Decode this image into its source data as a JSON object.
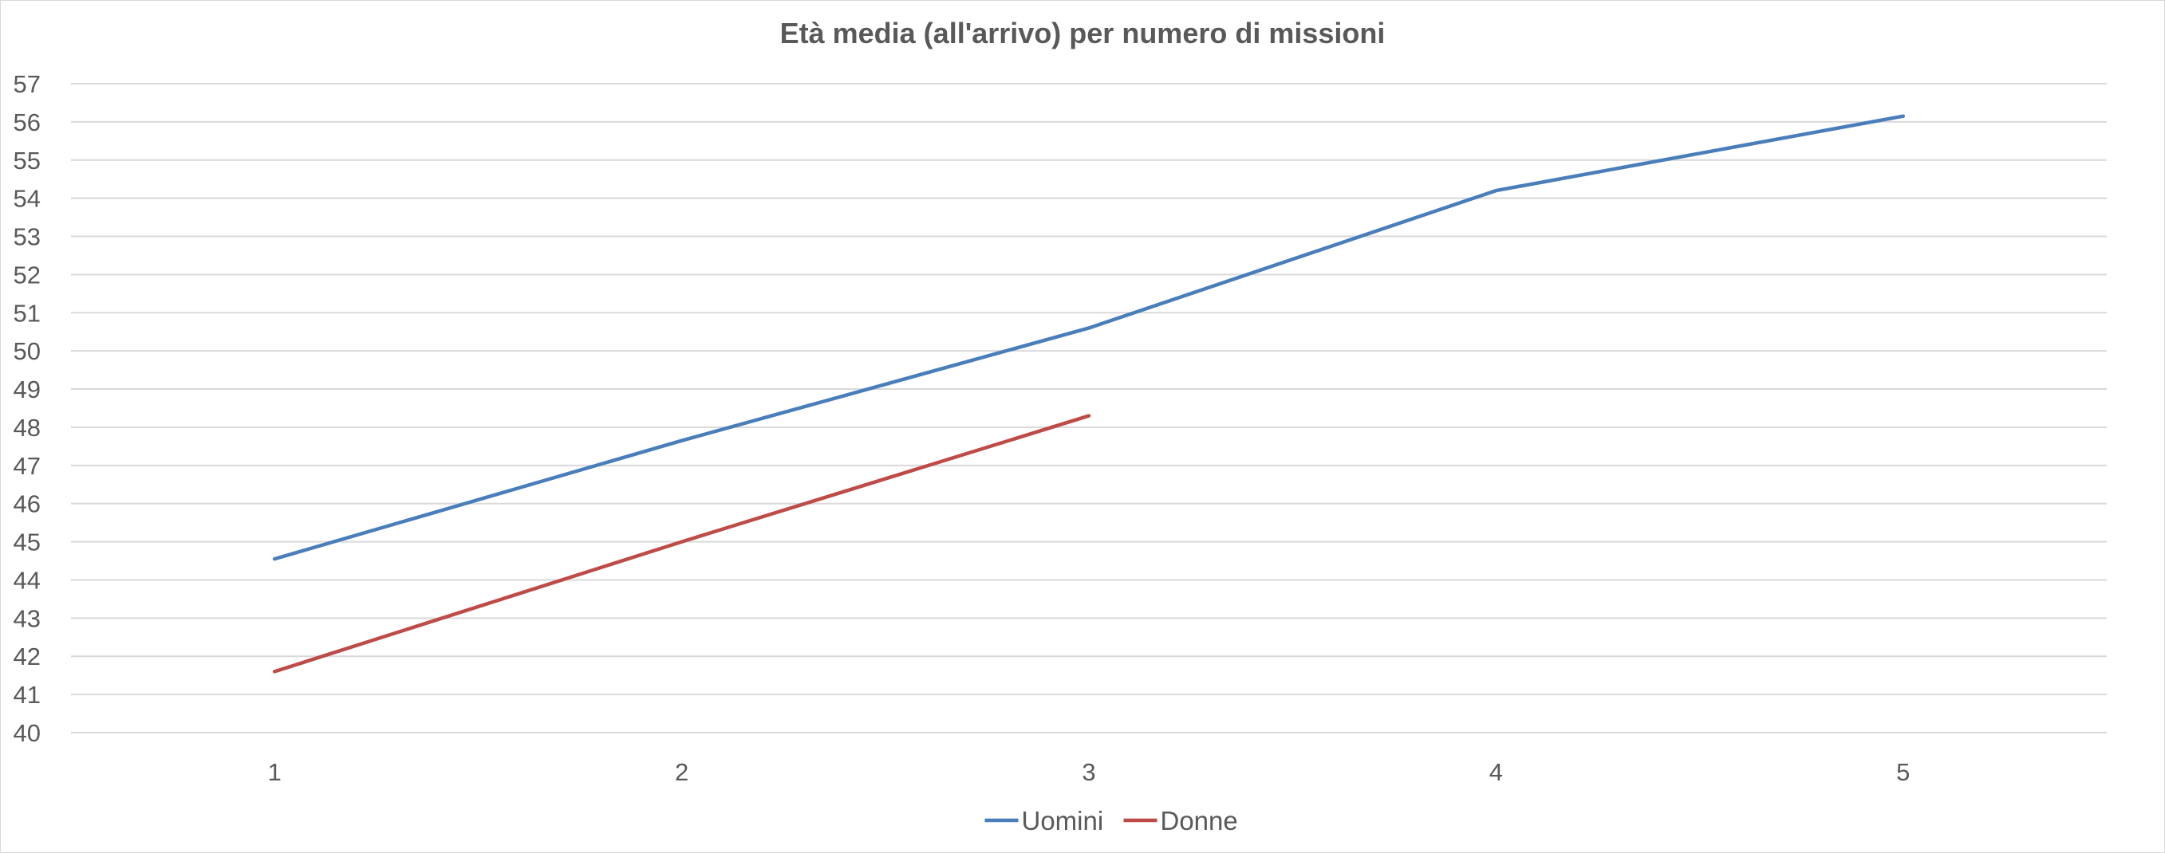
{
  "chart_data": {
    "type": "line",
    "title": "Età media (all'arrivo) per numero di missioni",
    "xlabel": "",
    "ylabel": "",
    "categories": [
      "1",
      "2",
      "3",
      "4",
      "5"
    ],
    "y_ticks": [
      "40",
      "41",
      "42",
      "43",
      "44",
      "45",
      "46",
      "47",
      "48",
      "49",
      "50",
      "51",
      "52",
      "53",
      "54",
      "55",
      "56",
      "57"
    ],
    "ylim": [
      40,
      57
    ],
    "grid": true,
    "legend": "bottom",
    "series": [
      {
        "name": "Uomini",
        "color": "#4a7ebb",
        "values": [
          44.55,
          47.65,
          50.6,
          54.2,
          56.15
        ]
      },
      {
        "name": "Donne",
        "color": "#be4b48",
        "values": [
          41.6,
          45.0,
          48.3,
          null,
          null
        ]
      }
    ]
  }
}
